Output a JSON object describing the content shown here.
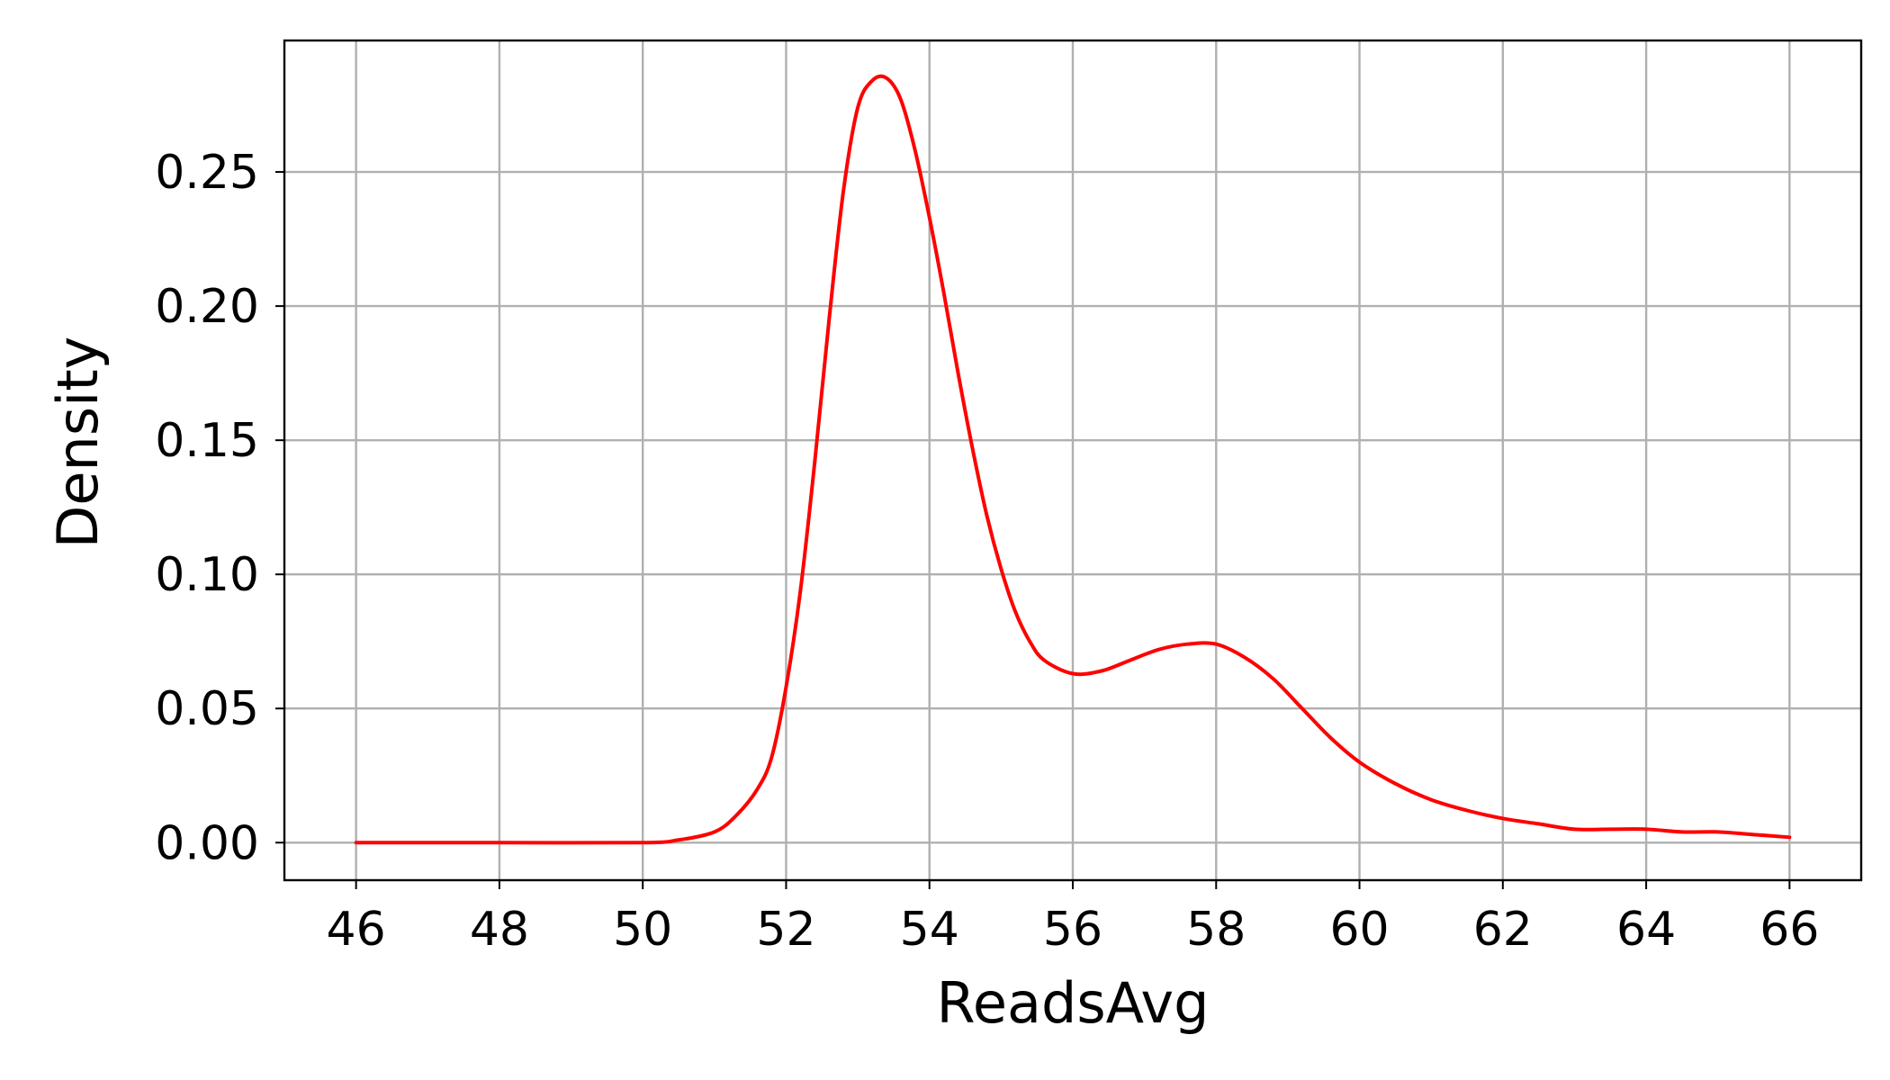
{
  "chart_data": {
    "type": "line",
    "title": "",
    "xlabel": "ReadsAvg",
    "ylabel": "Density",
    "xlim": [
      45,
      67
    ],
    "ylim": [
      -0.014,
      0.299
    ],
    "xticks": [
      46,
      48,
      50,
      52,
      54,
      56,
      58,
      60,
      62,
      64,
      66
    ],
    "yticks": [
      0.0,
      0.05,
      0.1,
      0.15,
      0.2,
      0.25
    ],
    "xtick_labels": [
      "46",
      "48",
      "50",
      "52",
      "54",
      "56",
      "58",
      "60",
      "62",
      "64",
      "66"
    ],
    "ytick_labels": [
      "0.00",
      "0.05",
      "0.10",
      "0.15",
      "0.20",
      "0.25"
    ],
    "grid": true,
    "series": [
      {
        "color": "#ff0000",
        "x": [
          46,
          48,
          50,
          50.5,
          51,
          51.3,
          51.6,
          51.8,
          52,
          52.2,
          52.4,
          52.6,
          52.8,
          53,
          53.2,
          53.4,
          53.6,
          53.8,
          54,
          54.2,
          54.4,
          54.6,
          54.8,
          55,
          55.2,
          55.4,
          55.6,
          56,
          56.4,
          56.8,
          57.2,
          57.6,
          58,
          58.4,
          58.8,
          59.2,
          59.6,
          60,
          60.5,
          61,
          61.5,
          62,
          62.5,
          63,
          63.5,
          64,
          64.5,
          65,
          65.5,
          66
        ],
        "y": [
          0.0,
          0.0,
          0.0,
          0.001,
          0.004,
          0.01,
          0.02,
          0.032,
          0.058,
          0.094,
          0.142,
          0.195,
          0.243,
          0.274,
          0.284,
          0.285,
          0.277,
          0.258,
          0.233,
          0.205,
          0.175,
          0.147,
          0.122,
          0.102,
          0.086,
          0.075,
          0.068,
          0.063,
          0.064,
          0.068,
          0.072,
          0.074,
          0.074,
          0.069,
          0.061,
          0.05,
          0.039,
          0.03,
          0.022,
          0.016,
          0.012,
          0.009,
          0.007,
          0.005,
          0.005,
          0.005,
          0.004,
          0.004,
          0.003,
          0.002
        ]
      }
    ]
  }
}
